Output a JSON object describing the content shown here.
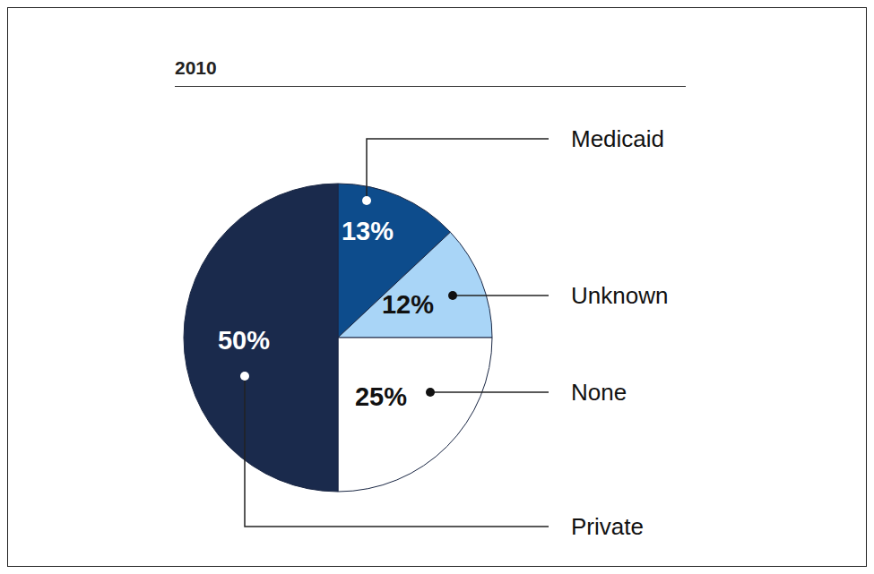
{
  "chart_data": {
    "type": "pie",
    "title": "2010",
    "categories": [
      "Medicaid",
      "Unknown",
      "None",
      "Private"
    ],
    "values": [
      13,
      12,
      25,
      50
    ],
    "value_labels": [
      "13%",
      "12%",
      "25%",
      "50%"
    ],
    "colors": [
      "#0d4c8c",
      "#a9d5f7",
      "#ffffff",
      "#1a2a4c"
    ],
    "data_labels": true
  }
}
